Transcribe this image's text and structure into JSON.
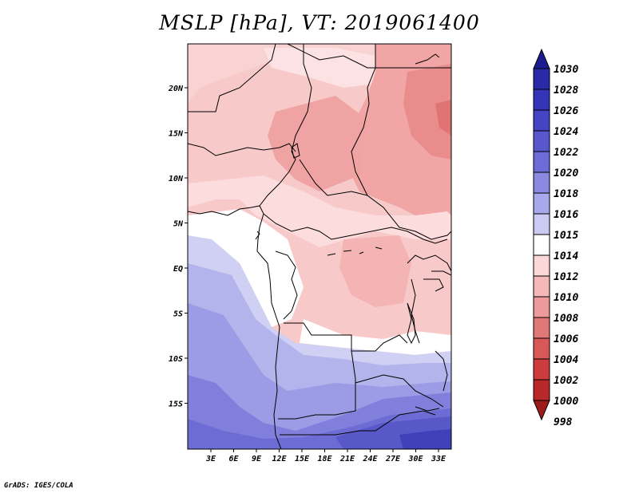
{
  "title": "MSLP [hPa], VT: 2019061400",
  "credit": "GrADS: IGES/COLA",
  "map": {
    "lat_labels": [
      "20N",
      "15N",
      "10N",
      "5N",
      "EQ",
      "5S",
      "10S",
      "15S"
    ],
    "lon_labels": [
      "3E",
      "6E",
      "9E",
      "12E",
      "15E",
      "18E",
      "21E",
      "24E",
      "27E",
      "30E",
      "33E"
    ]
  },
  "colorbar": {
    "labels": [
      "1030",
      "1028",
      "1026",
      "1024",
      "1022",
      "1020",
      "1018",
      "1016",
      "1015",
      "1014",
      "1012",
      "1010",
      "1008",
      "1006",
      "1004",
      "1002",
      "1000",
      "998"
    ],
    "colors": [
      "#1c1c90",
      "#2a2aa8",
      "#3434b8",
      "#4444c4",
      "#5858cc",
      "#6c6cd8",
      "#8a8ae0",
      "#a8a8ec",
      "#cacaf2",
      "#ffffff",
      "#fcd8d8",
      "#f5b8b8",
      "#ec9a9a",
      "#e07878",
      "#d85858",
      "#cc3c3c",
      "#b82828",
      "#9c1c1c"
    ]
  },
  "chart_data": {
    "type": "heatmap",
    "title": "MSLP [hPa], VT: 2019061400",
    "variable": "Mean sea level pressure",
    "units": "hPa",
    "valid_time": "2019061400",
    "x_ticks": [
      "3E",
      "6E",
      "9E",
      "12E",
      "15E",
      "18E",
      "21E",
      "24E",
      "27E",
      "30E",
      "33E"
    ],
    "y_ticks": [
      "20N",
      "15N",
      "10N",
      "5N",
      "EQ",
      "5S",
      "10S",
      "15S"
    ],
    "colorbar_levels": [
      998,
      1000,
      1002,
      1004,
      1006,
      1008,
      1010,
      1012,
      1014,
      1015,
      1016,
      1018,
      1020,
      1022,
      1024,
      1026,
      1028,
      1030
    ]
  }
}
